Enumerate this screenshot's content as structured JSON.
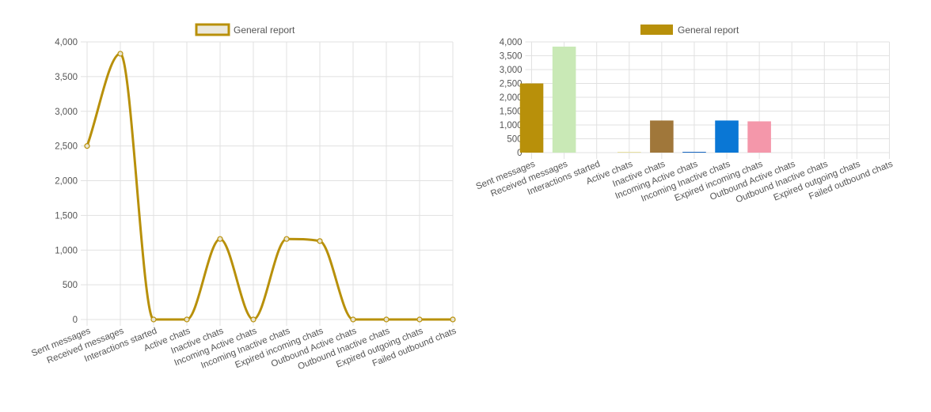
{
  "chart_data": [
    {
      "type": "line",
      "legend": "General report",
      "legend_position": "top-center",
      "categories": [
        "Sent messages",
        "Received messages",
        "Interactions started",
        "Active chats",
        "Inactive chats",
        "Incoming Active chats",
        "Incoming Inactive chats",
        "Expired incoming chats",
        "Outbound Active chats",
        "Outbound Inactive chats",
        "Expired outgoing chats",
        "Failed outbound chats"
      ],
      "series": [
        {
          "name": "General report",
          "values": [
            2500,
            3830,
            0,
            0,
            1160,
            0,
            1160,
            1130,
            0,
            0,
            0,
            0
          ],
          "color": "#b8900a"
        }
      ],
      "ylim": [
        0,
        4000
      ],
      "yticks": [
        "0",
        "500",
        "1,000",
        "1,500",
        "2,000",
        "2,500",
        "3,000",
        "3,500",
        "4,000"
      ],
      "grid": true
    },
    {
      "type": "bar",
      "legend": "General report",
      "legend_position": "top-center",
      "categories": [
        "Sent messages",
        "Received messages",
        "Interactions started",
        "Active chats",
        "Inactive chats",
        "Incoming Active chats",
        "Incoming Inactive chats",
        "Expired incoming chats",
        "Outbound Active chats",
        "Outbound Inactive chats",
        "Expired outgoing chats",
        "Failed outbound chats"
      ],
      "series": [
        {
          "name": "General report",
          "values": [
            2500,
            3830,
            0,
            10,
            1160,
            20,
            1160,
            1130,
            0,
            0,
            0,
            0
          ]
        }
      ],
      "bar_colors": [
        "#b8900a",
        "#c9e9b6",
        "#c9e9b6",
        "#e8e0a0",
        "#a0773a",
        "#1565c0",
        "#0a77d5",
        "#f497aa",
        "#cccccc",
        "#cccccc",
        "#cccccc",
        "#cccccc"
      ],
      "ylim": [
        0,
        4000
      ],
      "yticks": [
        "0",
        "500",
        "1,000",
        "1,500",
        "2,000",
        "2,500",
        "3,000",
        "3,500",
        "4,000"
      ],
      "grid": true
    }
  ]
}
